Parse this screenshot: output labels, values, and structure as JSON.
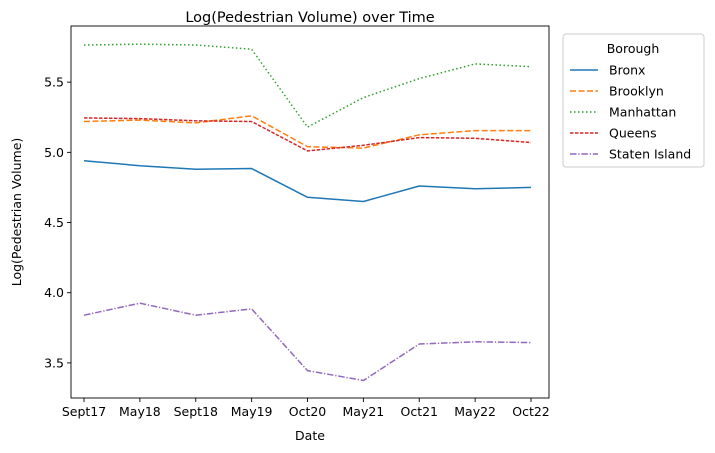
{
  "chart_data": {
    "type": "line",
    "title": "Log(Pedestrian Volume) over Time",
    "xlabel": "Date",
    "ylabel": "Log(Pedestrian Volume)",
    "categories": [
      "Sept17",
      "May18",
      "Sept18",
      "May19",
      "Oct20",
      "May21",
      "Oct21",
      "May22",
      "Oct22"
    ],
    "ylim": [
      3.25,
      5.9
    ],
    "yticks": [
      "3.5",
      "4.0",
      "4.5",
      "5.0",
      "5.5"
    ],
    "grid": false,
    "legend": {
      "title": "Borough",
      "placement": "outside right, top"
    },
    "series": [
      {
        "name": "Bronx",
        "color": "#1f77b4",
        "dash": "solid",
        "values": [
          4.94,
          4.905,
          4.88,
          4.885,
          4.68,
          4.65,
          4.76,
          4.74,
          4.75
        ]
      },
      {
        "name": "Brooklyn",
        "color": "#ff7f0e",
        "dash": "dashed",
        "values": [
          5.22,
          5.23,
          5.21,
          5.26,
          5.04,
          5.03,
          5.125,
          5.155,
          5.155
        ]
      },
      {
        "name": "Manhattan",
        "color": "#2ca02c",
        "dash": "dotted",
        "values": [
          5.765,
          5.77,
          5.765,
          5.735,
          5.18,
          5.39,
          5.525,
          5.63,
          5.61
        ]
      },
      {
        "name": "Queens",
        "color": "#d62728",
        "dash": "dashdot-short",
        "values": [
          5.245,
          5.24,
          5.225,
          5.22,
          5.01,
          5.05,
          5.105,
          5.1,
          5.07
        ]
      },
      {
        "name": "Staten Island",
        "color": "#9467bd",
        "dash": "dashdot",
        "values": [
          3.84,
          3.925,
          3.84,
          3.885,
          3.445,
          3.375,
          3.635,
          3.65,
          3.645
        ]
      }
    ]
  }
}
